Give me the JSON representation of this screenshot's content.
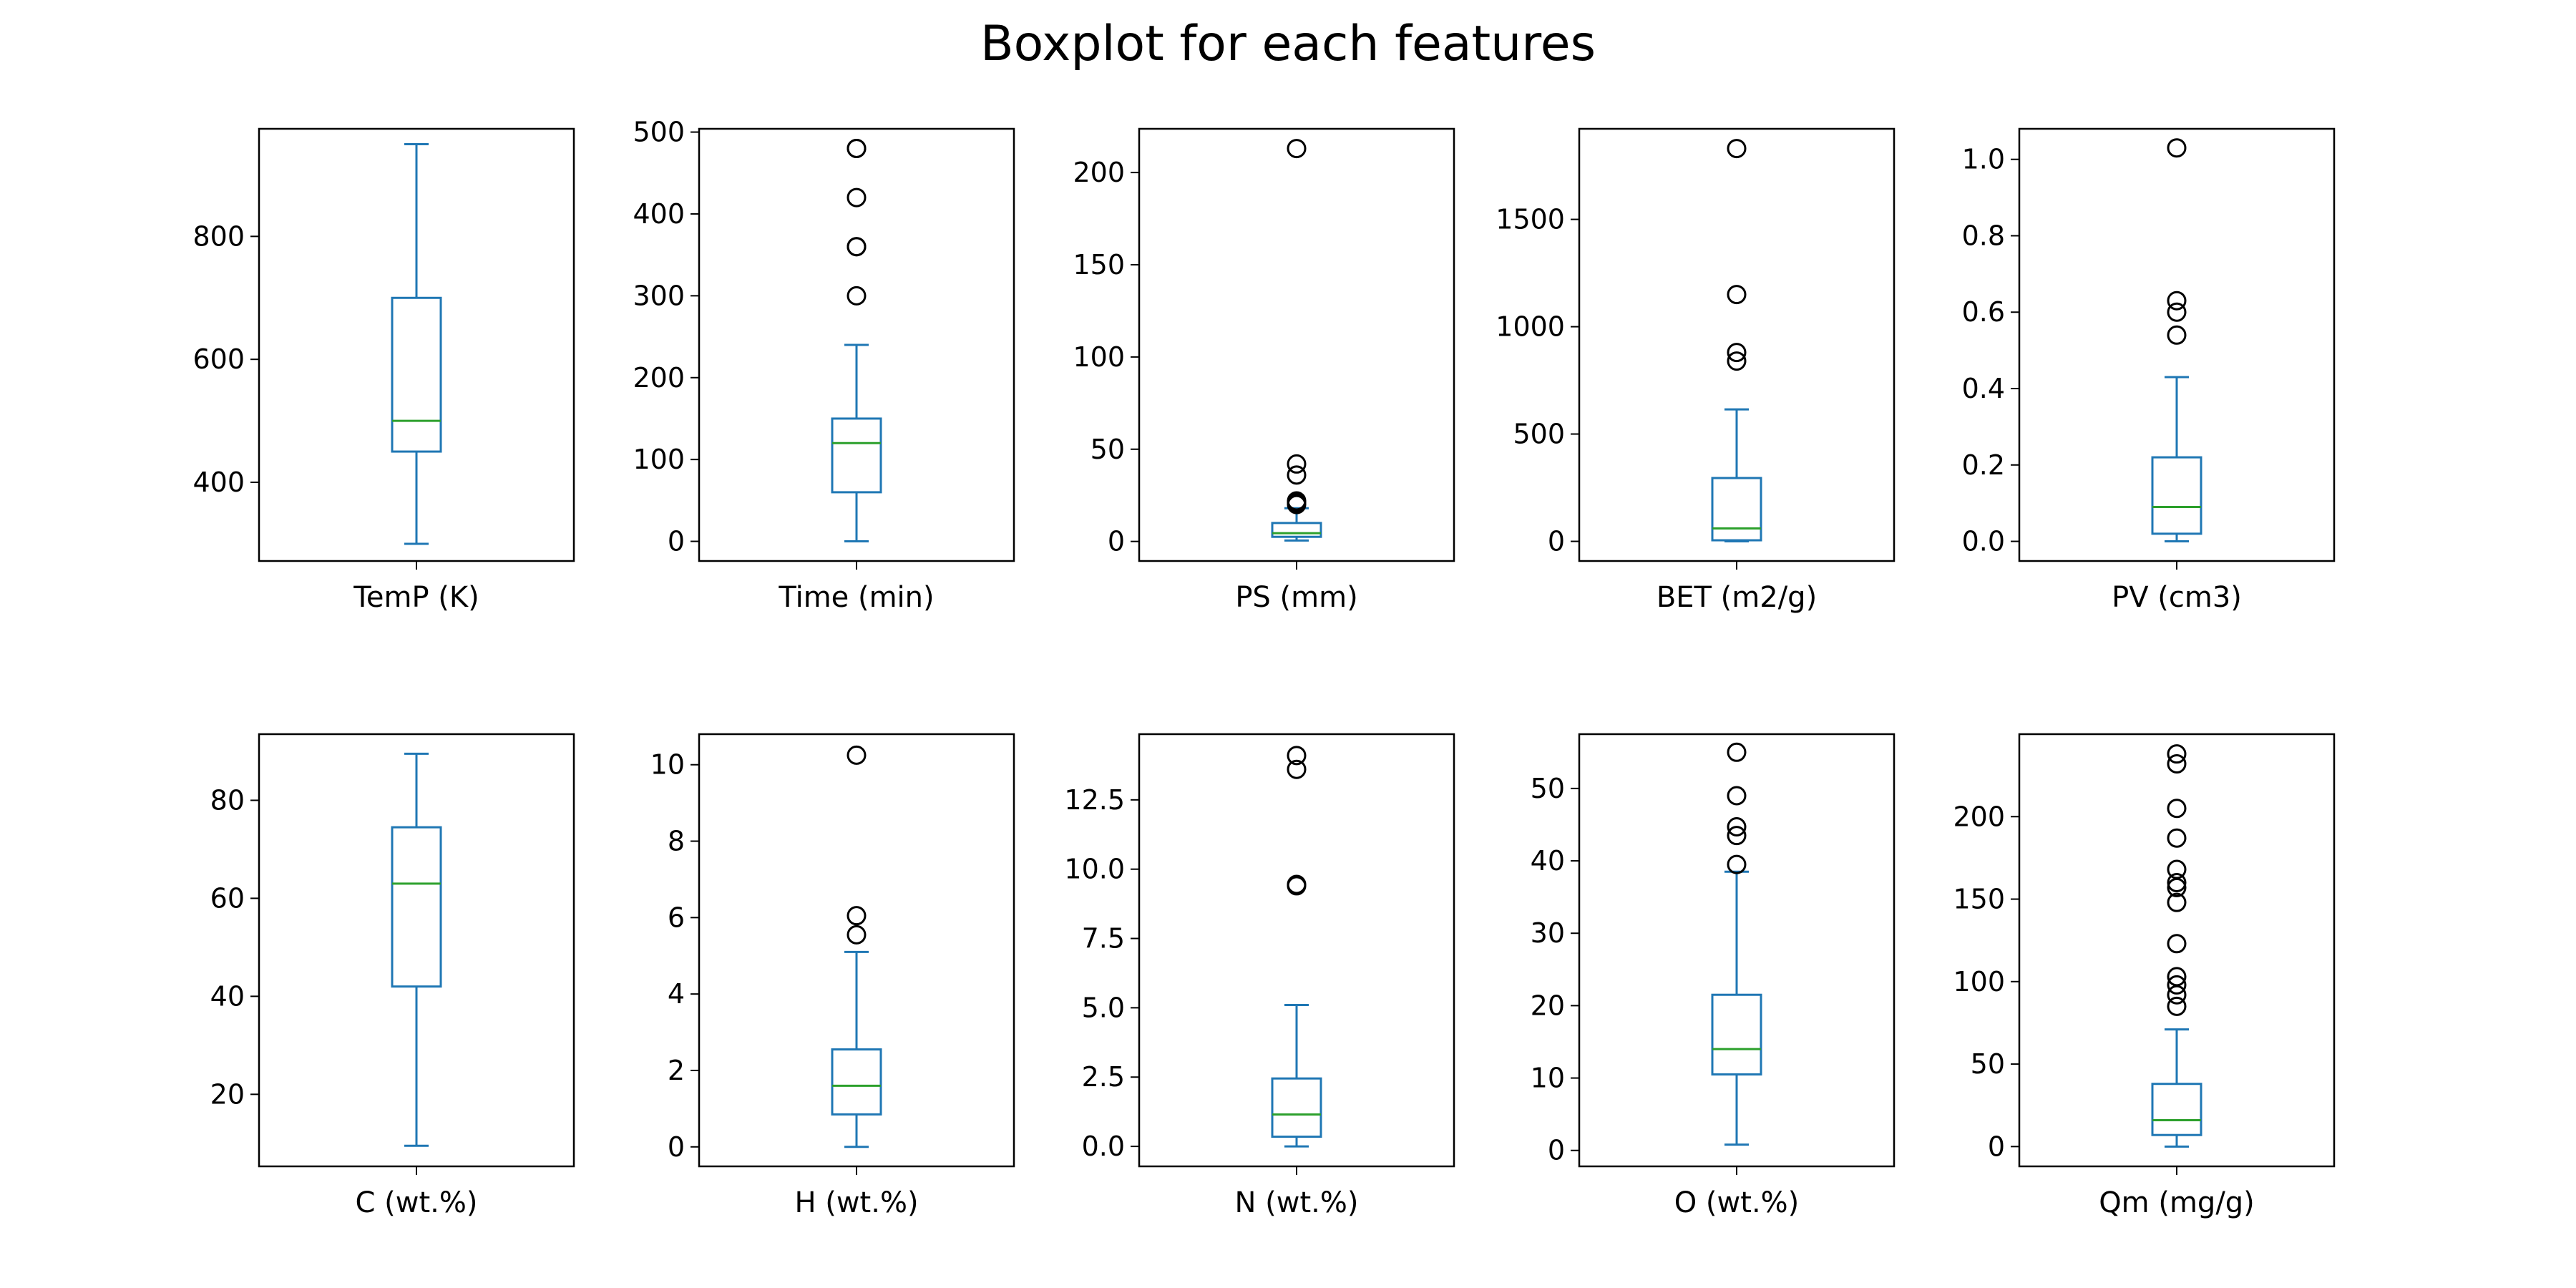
{
  "title": "Boxplot for each features",
  "colors": {
    "box": "#1f77b4",
    "median": "#2ca02c",
    "flier": "#000000",
    "frame": "#000000",
    "background": "#ffffff"
  },
  "chart_data": [
    {
      "type": "boxplot",
      "xlabel": "TemP (K)",
      "ylim": [
        272,
        975
      ],
      "yticks": [
        400,
        600,
        800
      ],
      "ytick_labels": [
        "400",
        "600",
        "800"
      ],
      "whisker_low": 300,
      "q1": 450,
      "median": 500,
      "q3": 700,
      "whisker_high": 950,
      "outliers": []
    },
    {
      "type": "boxplot",
      "xlabel": "Time (min)",
      "ylim": [
        -24,
        504
      ],
      "yticks": [
        0,
        100,
        200,
        300,
        400,
        500
      ],
      "ytick_labels": [
        "0",
        "100",
        "200",
        "300",
        "400",
        "500"
      ],
      "whisker_low": 0,
      "q1": 60,
      "median": 120,
      "q3": 150,
      "whisker_high": 240,
      "outliers": [
        300,
        360,
        360,
        420,
        480,
        480
      ]
    },
    {
      "type": "boxplot",
      "xlabel": "PS (mm)",
      "ylim": [
        -10.6,
        223.7
      ],
      "yticks": [
        0,
        50,
        100,
        150,
        200
      ],
      "ytick_labels": [
        "0",
        "50",
        "100",
        "150",
        "200"
      ],
      "whisker_low": 0.5,
      "q1": 2.5,
      "median": 4.5,
      "q3": 10,
      "whisker_high": 18,
      "outliers": [
        20,
        21,
        22,
        36,
        42,
        213
      ]
    },
    {
      "type": "boxplot",
      "xlabel": "BET (m2/g)",
      "ylim": [
        -91.5,
        1922
      ],
      "yticks": [
        0,
        500,
        1000,
        1500
      ],
      "ytick_labels": [
        "0",
        "500",
        "1000",
        "1500"
      ],
      "whisker_low": 0,
      "q1": 5,
      "median": 60,
      "q3": 295,
      "whisker_high": 615,
      "outliers": [
        840,
        880,
        1150,
        1830
      ]
    },
    {
      "type": "boxplot",
      "xlabel": "PV (cm3)",
      "ylim": [
        -0.0514,
        1.08
      ],
      "yticks": [
        0,
        0.2,
        0.4,
        0.6,
        0.8,
        1.0
      ],
      "ytick_labels": [
        "0.0",
        "0.2",
        "0.4",
        "0.6",
        "0.8",
        "1.0"
      ],
      "whisker_low": 0,
      "q1": 0.02,
      "median": 0.09,
      "q3": 0.22,
      "whisker_high": 0.43,
      "outliers": [
        0.54,
        0.6,
        0.63,
        1.03
      ]
    },
    {
      "type": "boxplot",
      "xlabel": "C (wt.%)",
      "ylim": [
        5.3,
        93.5
      ],
      "yticks": [
        20,
        40,
        60,
        80
      ],
      "ytick_labels": [
        "20",
        "40",
        "60",
        "80"
      ],
      "whisker_low": 9.5,
      "q1": 42,
      "median": 63,
      "q3": 74.5,
      "whisker_high": 89.5,
      "outliers": []
    },
    {
      "type": "boxplot",
      "xlabel": "H  (wt.%)",
      "ylim": [
        -0.51,
        10.8
      ],
      "yticks": [
        0,
        2,
        4,
        6,
        8,
        10
      ],
      "ytick_labels": [
        "0",
        "2",
        "4",
        "6",
        "8",
        "10"
      ],
      "whisker_low": 0,
      "q1": 0.85,
      "median": 1.6,
      "q3": 2.55,
      "whisker_high": 5.1,
      "outliers": [
        5.55,
        6.05,
        10.25
      ]
    },
    {
      "type": "boxplot",
      "xlabel": "N  (wt.%)",
      "ylim": [
        -0.72,
        14.87
      ],
      "yticks": [
        0,
        2.5,
        5,
        7.5,
        10,
        12.5
      ],
      "ytick_labels": [
        "0.0",
        "2.5",
        "5.0",
        "7.5",
        "10.0",
        "12.5"
      ],
      "whisker_low": 0,
      "q1": 0.35,
      "median": 1.15,
      "q3": 2.45,
      "whisker_high": 5.1,
      "outliers": [
        9.4,
        9.45,
        13.6,
        14.1
      ]
    },
    {
      "type": "boxplot",
      "xlabel": "O  (wt.%)",
      "ylim": [
        -2.2,
        57.5
      ],
      "yticks": [
        0,
        10,
        20,
        30,
        40,
        50
      ],
      "ytick_labels": [
        "0",
        "10",
        "20",
        "30",
        "40",
        "50"
      ],
      "whisker_low": 0.8,
      "q1": 10.5,
      "median": 14,
      "q3": 21.5,
      "whisker_high": 38.5,
      "outliers": [
        39.5,
        43.5,
        44.7,
        49,
        55
      ]
    },
    {
      "type": "boxplot",
      "xlabel": "Qm (mg/g)",
      "ylim": [
        -12,
        250
      ],
      "yticks": [
        0,
        50,
        100,
        150,
        200
      ],
      "ytick_labels": [
        "0",
        "50",
        "100",
        "150",
        "200"
      ],
      "whisker_low": 0,
      "q1": 7,
      "median": 16,
      "q3": 38,
      "whisker_high": 71,
      "outliers": [
        85,
        92,
        98,
        103,
        123,
        148,
        157,
        160,
        168,
        187,
        205,
        232,
        238
      ]
    }
  ]
}
